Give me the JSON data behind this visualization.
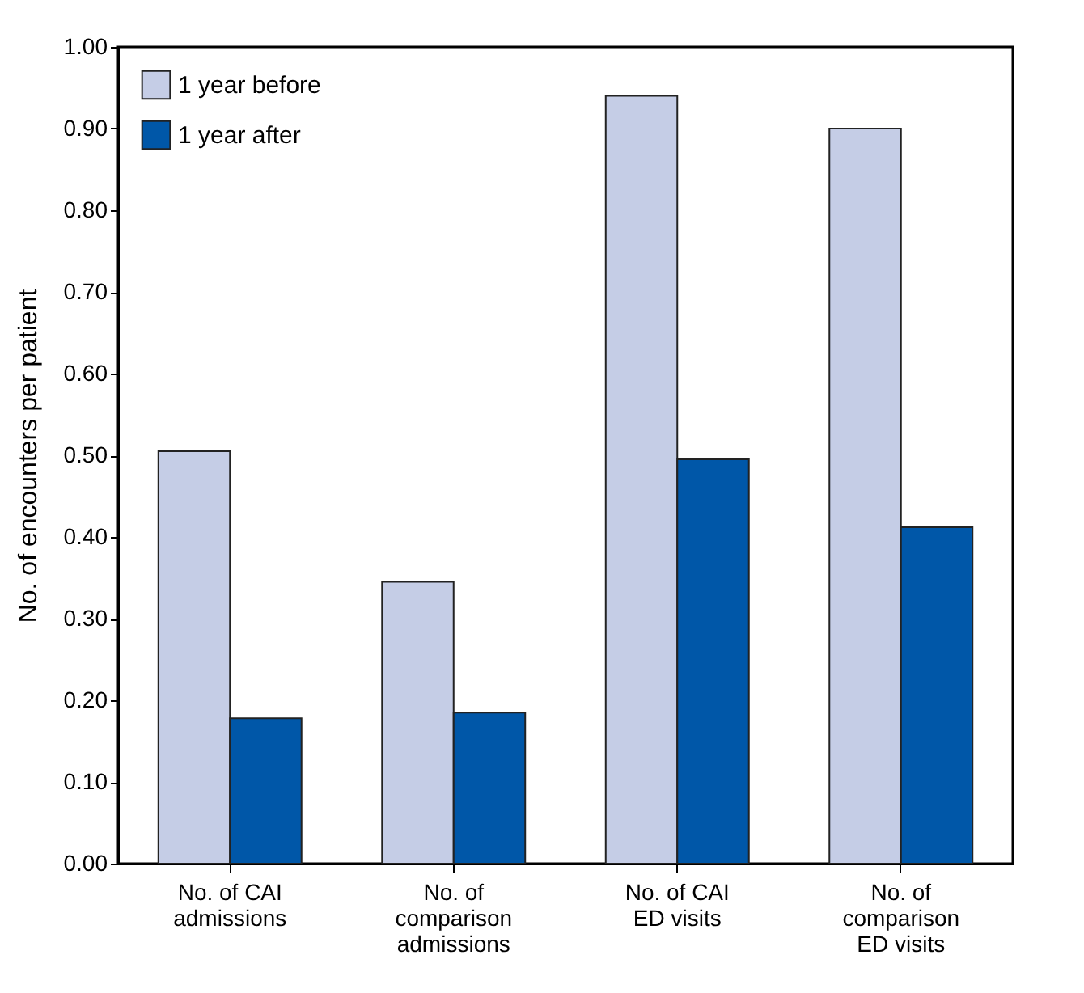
{
  "chart_data": {
    "type": "bar",
    "ylabel": "No. of encounters per patient",
    "categories": [
      "No. of CAI admissions",
      "No. of comparison admissions",
      "No. of CAI ED visits",
      "No. of comparison ED visits"
    ],
    "series": [
      {
        "name": "1 year before",
        "color": "#c5cde6",
        "values": [
          0.505,
          0.345,
          0.94,
          0.9
        ]
      },
      {
        "name": "1 year after",
        "color": "#0057a8",
        "values": [
          0.178,
          0.185,
          0.495,
          0.412
        ]
      }
    ],
    "ylim": [
      0,
      1
    ],
    "yticks": [
      {
        "value": 0,
        "label": "0.00"
      },
      {
        "value": 0.1,
        "label": "0.10"
      },
      {
        "value": 0.2,
        "label": "0.20"
      },
      {
        "value": 0.3,
        "label": "0.30"
      },
      {
        "value": 0.4,
        "label": "0.40"
      },
      {
        "value": 0.5,
        "label": "0.50"
      },
      {
        "value": 0.6,
        "label": "0.60"
      },
      {
        "value": 0.7,
        "label": "0.70"
      },
      {
        "value": 0.8,
        "label": "0.80"
      },
      {
        "value": 0.9,
        "label": "0.90"
      },
      {
        "value": 1,
        "label": "1.00"
      }
    ],
    "grid": false,
    "legend": "top left"
  }
}
